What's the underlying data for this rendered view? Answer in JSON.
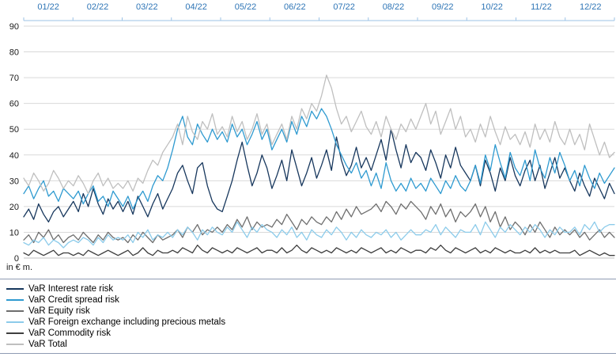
{
  "labels": {
    "unit": "in € m."
  },
  "chart_data": {
    "type": "line",
    "title": "",
    "unit": "in € m.",
    "grid": true,
    "legend_position": "bottom-left",
    "x_axis": {
      "position": "top",
      "label_color": "#2E75B6",
      "labels": [
        "01/22",
        "02/22",
        "03/22",
        "04/22",
        "05/22",
        "06/22",
        "07/22",
        "08/22",
        "09/22",
        "10/22",
        "11/22",
        "12/22"
      ]
    },
    "y_axis": {
      "min": 0,
      "max": 90,
      "step": 10,
      "ticks": [
        90,
        80,
        70,
        60,
        50,
        40,
        30,
        20,
        10,
        0
      ]
    },
    "series": [
      {
        "name": "VaR Interest rate risk",
        "color": "#17375D",
        "values": [
          16,
          19,
          15,
          21,
          17,
          14,
          18,
          20,
          16,
          19,
          22,
          18,
          25,
          20,
          27,
          21,
          17,
          23,
          19,
          22,
          18,
          22,
          17,
          24,
          20,
          16,
          21,
          25,
          19,
          23,
          27,
          33,
          36,
          30,
          25,
          35,
          37,
          28,
          22,
          19,
          18,
          24,
          30,
          38,
          45,
          36,
          28,
          33,
          40,
          35,
          27,
          32,
          38,
          30,
          42,
          35,
          28,
          33,
          39,
          31,
          36,
          42,
          34,
          47,
          38,
          32,
          36,
          43,
          35,
          39,
          34,
          40,
          46,
          38,
          50,
          42,
          35,
          44,
          37,
          41,
          39,
          34,
          42,
          37,
          31,
          40,
          35,
          43,
          36,
          33,
          30,
          36,
          28,
          38,
          33,
          26,
          35,
          30,
          39,
          32,
          28,
          34,
          38,
          30,
          36,
          27,
          33,
          39,
          31,
          35,
          30,
          26,
          33,
          28,
          24,
          31,
          27,
          23,
          29,
          25
        ]
      },
      {
        "name": "VaR Credit spread risk",
        "color": "#2E9AD0",
        "values": [
          25,
          28,
          23,
          27,
          30,
          24,
          26,
          22,
          27,
          25,
          23,
          26,
          21,
          25,
          28,
          22,
          24,
          20,
          26,
          23,
          20,
          24,
          19,
          23,
          26,
          22,
          28,
          32,
          30,
          35,
          42,
          50,
          55,
          47,
          44,
          52,
          48,
          45,
          50,
          46,
          49,
          45,
          52,
          47,
          50,
          44,
          48,
          53,
          46,
          50,
          42,
          46,
          50,
          45,
          53,
          48,
          55,
          51,
          57,
          54,
          58,
          55,
          50,
          44,
          40,
          36,
          33,
          37,
          31,
          34,
          28,
          33,
          27,
          37,
          30,
          26,
          29,
          26,
          31,
          27,
          29,
          26,
          31,
          28,
          25,
          30,
          27,
          32,
          28,
          26,
          30,
          36,
          29,
          40,
          34,
          44,
          37,
          31,
          41,
          35,
          32,
          38,
          30,
          42,
          35,
          31,
          39,
          33,
          41,
          36,
          30,
          34,
          28,
          36,
          31,
          27,
          33,
          29,
          32,
          35
        ]
      },
      {
        "name": "VaR Equity risk",
        "color": "#6E6E6E",
        "values": [
          7,
          9,
          6,
          10,
          8,
          11,
          7,
          9,
          6,
          8,
          9,
          7,
          10,
          8,
          6,
          9,
          7,
          10,
          8,
          7,
          8,
          6,
          9,
          7,
          10,
          8,
          6,
          9,
          7,
          8,
          9,
          11,
          8,
          12,
          10,
          13,
          9,
          11,
          10,
          12,
          10,
          13,
          11,
          15,
          12,
          16,
          11,
          14,
          12,
          13,
          12,
          15,
          13,
          17,
          14,
          11,
          15,
          13,
          16,
          14,
          13,
          16,
          14,
          18,
          15,
          19,
          16,
          20,
          17,
          18,
          19,
          21,
          18,
          22,
          20,
          17,
          21,
          19,
          22,
          20,
          18,
          15,
          20,
          17,
          21,
          16,
          19,
          14,
          18,
          16,
          18,
          21,
          16,
          20,
          14,
          18,
          12,
          16,
          11,
          14,
          12,
          9,
          13,
          10,
          14,
          11,
          8,
          12,
          9,
          11,
          9,
          11,
          8,
          10,
          7,
          9,
          11,
          8,
          10,
          8
        ]
      },
      {
        "name": "VaR Foreign exchange including precious metals",
        "color": "#8CCBEA",
        "values": [
          6,
          5,
          7,
          6,
          8,
          5,
          7,
          6,
          4,
          6,
          7,
          6,
          8,
          7,
          5,
          8,
          6,
          9,
          7,
          8,
          7,
          9,
          6,
          10,
          8,
          11,
          7,
          9,
          8,
          10,
          8,
          11,
          9,
          12,
          10,
          7,
          11,
          9,
          12,
          10,
          9,
          12,
          10,
          14,
          11,
          8,
          12,
          10,
          13,
          11,
          10,
          8,
          11,
          9,
          12,
          8,
          10,
          7,
          11,
          9,
          8,
          11,
          9,
          12,
          10,
          7,
          10,
          8,
          11,
          9,
          8,
          10,
          9,
          11,
          8,
          10,
          7,
          9,
          11,
          9,
          9,
          11,
          10,
          13,
          9,
          12,
          10,
          8,
          11,
          10,
          10,
          13,
          9,
          14,
          11,
          8,
          12,
          10,
          13,
          11,
          9,
          12,
          10,
          13,
          11,
          8,
          11,
          9,
          12,
          10,
          10,
          12,
          9,
          13,
          11,
          14,
          10,
          12,
          13,
          13
        ]
      },
      {
        "name": "VaR Commodity risk",
        "color": "#3F3F3F",
        "values": [
          2,
          1,
          3,
          2,
          1,
          2,
          3,
          1,
          2,
          2,
          1,
          2,
          1,
          3,
          2,
          1,
          2,
          3,
          2,
          1,
          2,
          3,
          1,
          2,
          4,
          2,
          1,
          3,
          2,
          2,
          3,
          2,
          4,
          3,
          2,
          5,
          3,
          2,
          4,
          3,
          2,
          3,
          2,
          4,
          3,
          2,
          3,
          4,
          2,
          3,
          3,
          2,
          4,
          2,
          3,
          5,
          3,
          2,
          4,
          3,
          2,
          3,
          2,
          4,
          3,
          2,
          3,
          2,
          4,
          3,
          2,
          3,
          4,
          2,
          3,
          2,
          4,
          3,
          2,
          3,
          3,
          2,
          4,
          3,
          5,
          3,
          2,
          4,
          3,
          2,
          3,
          4,
          2,
          3,
          2,
          4,
          3,
          2,
          3,
          2,
          2,
          3,
          2,
          4,
          2,
          3,
          2,
          3,
          2,
          2,
          2,
          3,
          1,
          2,
          3,
          2,
          1,
          2,
          1,
          1
        ]
      },
      {
        "name": "VaR Total",
        "color": "#BFBFBF",
        "values": [
          31,
          28,
          33,
          30,
          26,
          29,
          34,
          31,
          27,
          30,
          28,
          32,
          29,
          25,
          30,
          33,
          28,
          31,
          27,
          29,
          27,
          30,
          26,
          31,
          29,
          34,
          38,
          36,
          41,
          44,
          47,
          52,
          44,
          55,
          49,
          46,
          53,
          50,
          56,
          48,
          51,
          47,
          55,
          49,
          53,
          46,
          50,
          56,
          48,
          52,
          44,
          48,
          52,
          46,
          55,
          50,
          58,
          54,
          60,
          57,
          63,
          71,
          66,
          58,
          52,
          55,
          49,
          53,
          57,
          51,
          48,
          53,
          47,
          55,
          50,
          46,
          52,
          49,
          54,
          50,
          55,
          60,
          52,
          57,
          48,
          53,
          58,
          50,
          55,
          47,
          50,
          45,
          52,
          47,
          55,
          49,
          44,
          51,
          46,
          48,
          44,
          49,
          43,
          52,
          46,
          50,
          45,
          53,
          47,
          44,
          50,
          44,
          48,
          42,
          52,
          46,
          40,
          45,
          39,
          41
        ]
      }
    ]
  }
}
